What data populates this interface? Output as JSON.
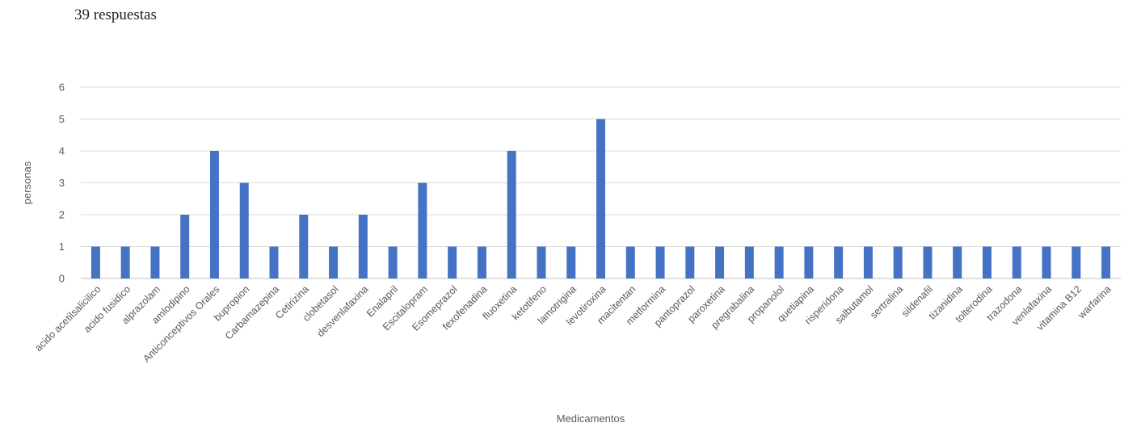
{
  "header": {
    "responses_label": "39 respuestas"
  },
  "chart_data": {
    "type": "bar",
    "title": "",
    "xlabel": "Medicamentos",
    "ylabel": "personas",
    "ylim": [
      0,
      6
    ],
    "yticks": [
      0,
      1,
      2,
      3,
      4,
      5,
      6
    ],
    "grid": true,
    "legend": "none",
    "bar_color": "#4472c4",
    "grid_color": "#d9d9d9",
    "categories": [
      "acido acetilsalicilico",
      "acido fusidico",
      "alprazolam",
      "amlodipino",
      "Anticonceptivos Orales",
      "bupropion",
      "Carbamazepina",
      "Cetirizina",
      "clobetasol",
      "desvenlafaxina",
      "Enalapril",
      "Escitalopram",
      "Esomeprazol",
      "fexofenadina",
      "fluoxetina",
      "ketotifeno",
      "lamotrigina",
      "levotiroxina",
      "macitentan",
      "metformina",
      "pantoprazol",
      "paroxetina",
      "pregrabalina",
      "propanolol",
      "quetiapina",
      "risperidona",
      "salbutamol",
      "sertralina",
      "sildenafil",
      "tizanidina",
      "tolterodina",
      "trazodona",
      "venlafaxina",
      "vitamina B12",
      "warfarina"
    ],
    "values": [
      1,
      1,
      1,
      2,
      4,
      3,
      1,
      2,
      1,
      2,
      1,
      3,
      1,
      1,
      4,
      1,
      1,
      5,
      1,
      1,
      1,
      1,
      1,
      1,
      1,
      1,
      1,
      1,
      1,
      1,
      1,
      1,
      1,
      1,
      1
    ]
  }
}
